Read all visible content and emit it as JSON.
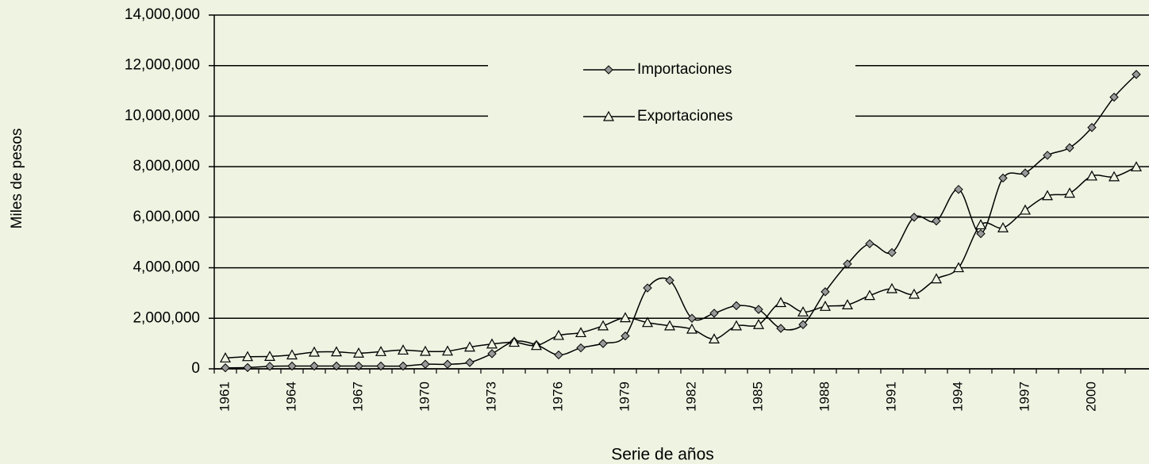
{
  "chart_data": {
    "type": "line",
    "y_label": "Miles de pesos",
    "x_label": "Serie de años",
    "categories": [
      "1961",
      null,
      null,
      "1964",
      null,
      null,
      "1967",
      null,
      null,
      "1970",
      null,
      null,
      "1973",
      null,
      null,
      "1976",
      null,
      null,
      "1979",
      null,
      null,
      "1982",
      null,
      null,
      "1985",
      null,
      null,
      "1988",
      null,
      null,
      "1991",
      null,
      null,
      "1994",
      null,
      null,
      "1997",
      null,
      null,
      "2000",
      null,
      null
    ],
    "series": [
      {
        "name": "Importaciones",
        "color": "#000000",
        "marker": "diamond",
        "values": [
          40000,
          50000,
          100000,
          110000,
          110000,
          110000,
          110000,
          110000,
          110000,
          180000,
          180000,
          250000,
          600000,
          1080000,
          950000,
          550000,
          830000,
          1000000,
          1300000,
          3200000,
          3500000,
          2000000,
          2200000,
          2500000,
          2350000,
          1600000,
          1750000,
          3050000,
          4150000,
          4950000,
          4600000,
          6000000,
          5850000,
          7100000,
          5350000,
          7550000,
          7750000,
          8450000,
          8750000,
          9550000,
          10750000,
          11650000
        ]
      },
      {
        "name": "Exportaciones",
        "color": "#000000",
        "marker": "triangle",
        "values": [
          430000,
          480000,
          490000,
          550000,
          660000,
          670000,
          620000,
          680000,
          740000,
          690000,
          700000,
          860000,
          980000,
          1050000,
          920000,
          1320000,
          1430000,
          1700000,
          2020000,
          1830000,
          1700000,
          1570000,
          1180000,
          1700000,
          1750000,
          2620000,
          2250000,
          2470000,
          2530000,
          2900000,
          3170000,
          2950000,
          3560000,
          4000000,
          5700000,
          5580000,
          6280000,
          6850000,
          6950000,
          7630000,
          7600000,
          7990000
        ]
      }
    ],
    "ylim": [
      0,
      14000000
    ],
    "yticks": [
      0,
      {
        "value": 2000000,
        "label": "2,000,000"
      },
      {
        "value": 4000000,
        "label": "4,000,000"
      },
      {
        "value": 6000000,
        "label": "6,000,000"
      },
      {
        "value": 8000000,
        "label": "8,000,000"
      },
      {
        "value": 10000000,
        "label": "10,000,000"
      },
      {
        "value": 12000000,
        "label": "12,000,000"
      },
      {
        "value": 14000000,
        "label": "14,000,000"
      }
    ],
    "grid": true
  }
}
